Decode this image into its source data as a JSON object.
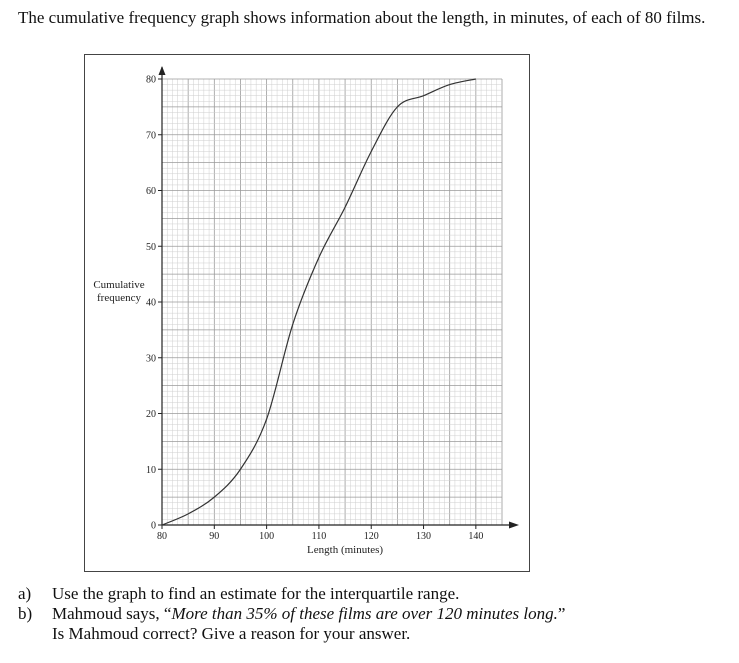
{
  "question": {
    "intro": "The cumulative frequency graph shows information about the length, in minutes, of each of 80 films.",
    "part_a": {
      "letter": "a)",
      "text": "Use the graph to find an estimate for the interquartile range."
    },
    "part_b": {
      "letter": "b)",
      "lead": "Mahmoud says, “",
      "quote": "More than 35% of these films are over 120 minutes long.",
      "close": "”",
      "line2": "Is Mahmoud correct? Give a reason for your answer."
    }
  },
  "chart_data": {
    "type": "line",
    "title": "",
    "xlabel": "Length (minutes)",
    "ylabel": "Cumulative frequency",
    "xlim": [
      80,
      145
    ],
    "ylim": [
      0,
      80
    ],
    "x_ticks": [
      "80",
      "90",
      "100",
      "110",
      "120",
      "130",
      "140"
    ],
    "y_ticks": [
      "0",
      "10",
      "20",
      "30",
      "40",
      "50",
      "60",
      "70",
      "80"
    ],
    "grid": true,
    "series": [
      {
        "x": [
          80,
          85,
          90,
          95,
          100,
          105,
          110,
          115,
          120,
          125,
          130,
          135,
          140
        ],
        "y": [
          0,
          2,
          5,
          10,
          19,
          36,
          48,
          57,
          67,
          75,
          77,
          79,
          80
        ]
      }
    ]
  }
}
